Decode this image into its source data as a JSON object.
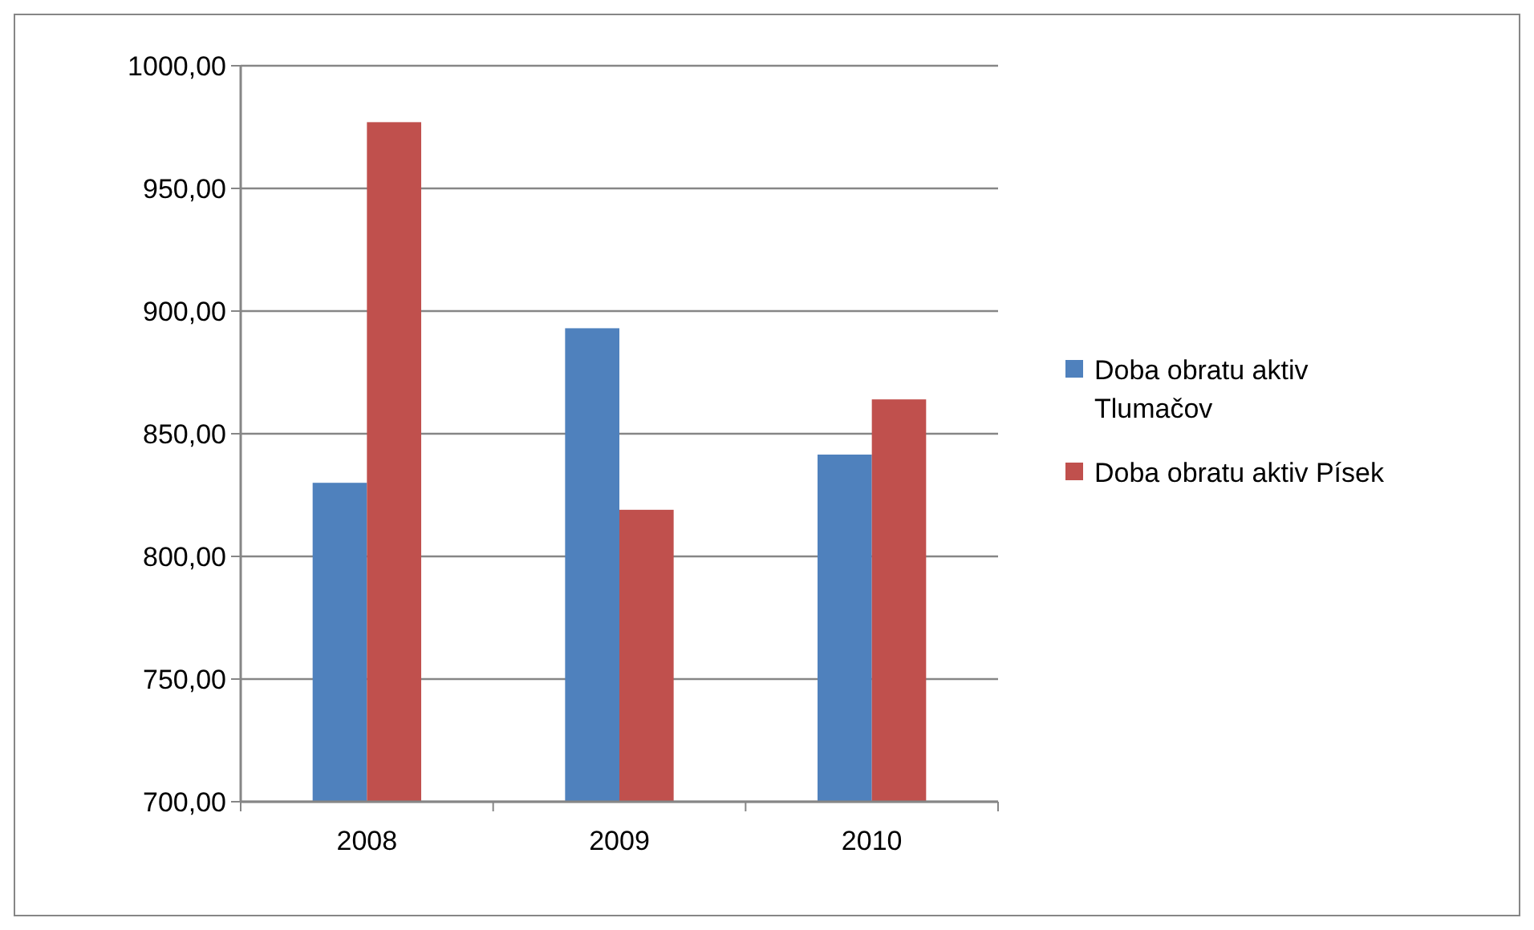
{
  "chart_data": {
    "type": "bar",
    "categories": [
      "2008",
      "2009",
      "2010"
    ],
    "series": [
      {
        "name": "Doba obratu aktiv Tlumačov",
        "color": "#4f81bd",
        "values": [
          830,
          893,
          841.5
        ]
      },
      {
        "name": "Doba obratu aktiv Písek",
        "color": "#c0504d",
        "values": [
          977,
          819,
          864
        ]
      }
    ],
    "ylim": [
      700,
      1000
    ],
    "yticks": [
      {
        "value": 700,
        "label": "700,00"
      },
      {
        "value": 750,
        "label": "750,00"
      },
      {
        "value": 800,
        "label": "800,00"
      },
      {
        "value": 850,
        "label": "850,00"
      },
      {
        "value": 900,
        "label": "900,00"
      },
      {
        "value": 950,
        "label": "950,00"
      },
      {
        "value": 1000,
        "label": "1000,00"
      }
    ],
    "grid": "y",
    "legend": "right"
  }
}
